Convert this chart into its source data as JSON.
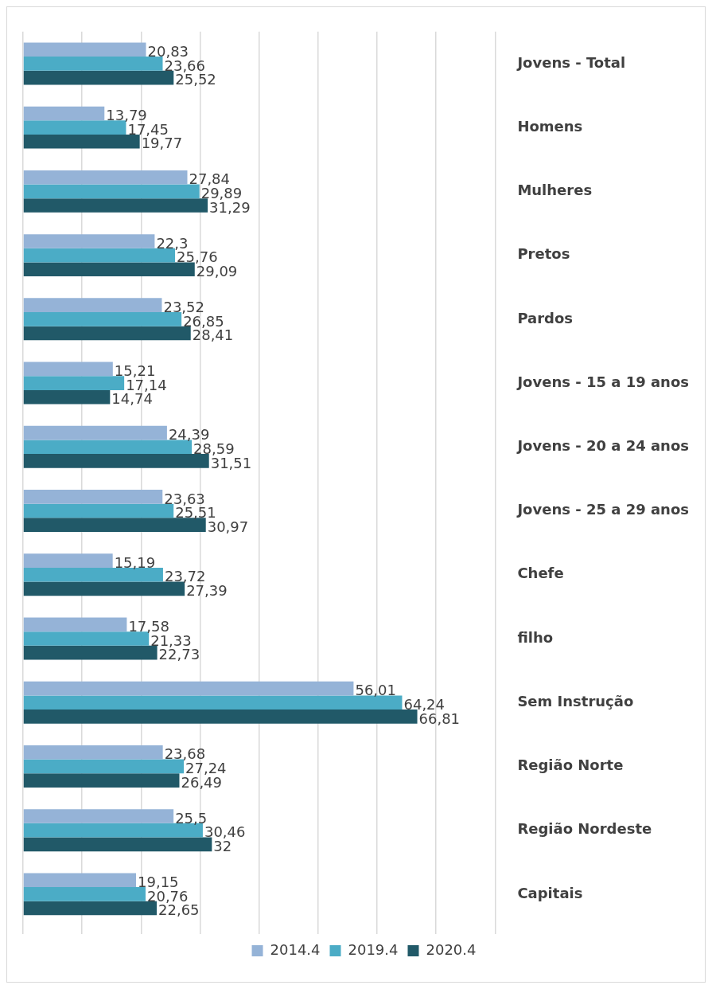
{
  "chart_data": {
    "type": "bar",
    "orientation": "horizontal",
    "categories": [
      "Jovens - Total",
      "Homens",
      "Mulheres",
      "Pretos",
      "Pardos",
      "Jovens - 15 a 19 anos",
      "Jovens - 20 a 24 anos",
      "Jovens - 25 a 29 anos",
      "Chefe",
      "filho",
      "Sem Instrução",
      "Região Norte",
      "Região Nordeste",
      "Capitais"
    ],
    "series": [
      {
        "name": "2014.4",
        "color": "#95b3d7",
        "values": [
          20.83,
          13.79,
          27.84,
          22.3,
          23.52,
          15.21,
          24.39,
          23.63,
          15.19,
          17.58,
          56.01,
          23.68,
          25.5,
          19.15
        ],
        "value_labels": [
          "20,83",
          "13,79",
          "27,84",
          "22,3",
          "23,52",
          "15,21",
          "24,39",
          "23,63",
          "15,19",
          "17,58",
          "56,01",
          "23,68",
          "25,5",
          "19,15"
        ]
      },
      {
        "name": "2019.4",
        "color": "#4bacc6",
        "values": [
          23.66,
          17.45,
          29.89,
          25.76,
          26.85,
          17.14,
          28.59,
          25.51,
          23.72,
          21.33,
          64.24,
          27.24,
          30.46,
          20.76
        ],
        "value_labels": [
          "23,66",
          "17,45",
          "29,89",
          "25,76",
          "26,85",
          "17,14",
          "28,59",
          "25,51",
          "23,72",
          "21,33",
          "64,24",
          "27,24",
          "30,46",
          "20,76"
        ]
      },
      {
        "name": "2020.4",
        "color": "#215968",
        "values": [
          25.52,
          19.77,
          31.29,
          29.09,
          28.41,
          14.74,
          31.51,
          30.97,
          27.39,
          22.73,
          66.81,
          26.49,
          32,
          22.65
        ],
        "value_labels": [
          "25,52",
          "19,77",
          "31,29",
          "29,09",
          "28,41",
          "14,74",
          "31,51",
          "30,97",
          "27,39",
          "22,73",
          "66,81",
          "26,49",
          "32",
          "22,65"
        ]
      }
    ],
    "xlim": [
      0,
      80
    ],
    "xticks": [
      {
        "value": 0,
        "label": null
      },
      {
        "value": 10,
        "label": null
      },
      {
        "value": 20,
        "label": null
      },
      {
        "value": 30,
        "label": null
      },
      {
        "value": 40,
        "label": null
      },
      {
        "value": 50,
        "label": null
      },
      {
        "value": 60,
        "label": null
      },
      {
        "value": 70,
        "label": null
      },
      {
        "value": 80,
        "label": null
      }
    ],
    "tick_labels": "y",
    "grid": "x",
    "legend": "bottom"
  }
}
